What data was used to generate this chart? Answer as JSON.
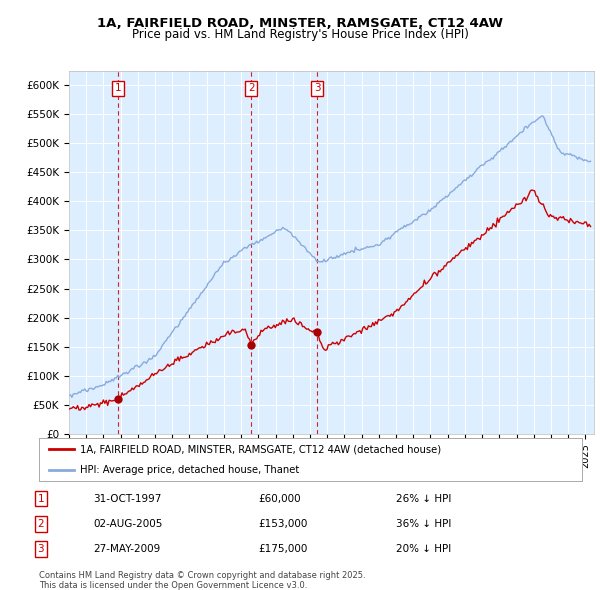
{
  "title1": "1A, FAIRFIELD ROAD, MINSTER, RAMSGATE, CT12 4AW",
  "title2": "Price paid vs. HM Land Registry's House Price Index (HPI)",
  "ylim": [
    0,
    625000
  ],
  "yticks": [
    0,
    50000,
    100000,
    150000,
    200000,
    250000,
    300000,
    350000,
    400000,
    450000,
    500000,
    550000,
    600000
  ],
  "ytick_labels": [
    "£0",
    "£50K",
    "£100K",
    "£150K",
    "£200K",
    "£250K",
    "£300K",
    "£350K",
    "£400K",
    "£450K",
    "£500K",
    "£550K",
    "£600K"
  ],
  "xlim_start": 1995.0,
  "xlim_end": 2025.5,
  "background_color": "#ddeeff",
  "red_line_color": "#cc0000",
  "blue_line_color": "#88aadd",
  "transactions": [
    {
      "num": 1,
      "year": 1997.83,
      "price": 60000
    },
    {
      "num": 2,
      "year": 2005.58,
      "price": 153000
    },
    {
      "num": 3,
      "year": 2009.41,
      "price": 175000
    }
  ],
  "legend_entries": [
    "1A, FAIRFIELD ROAD, MINSTER, RAMSGATE, CT12 4AW (detached house)",
    "HPI: Average price, detached house, Thanet"
  ],
  "table_rows": [
    {
      "num": 1,
      "date": "31-OCT-1997",
      "price": "£60,000",
      "pct": "26% ↓ HPI"
    },
    {
      "num": 2,
      "date": "02-AUG-2005",
      "price": "£153,000",
      "pct": "36% ↓ HPI"
    },
    {
      "num": 3,
      "date": "27-MAY-2009",
      "price": "£175,000",
      "pct": "20% ↓ HPI"
    }
  ],
  "footer": "Contains HM Land Registry data © Crown copyright and database right 2025.\nThis data is licensed under the Open Government Licence v3.0."
}
